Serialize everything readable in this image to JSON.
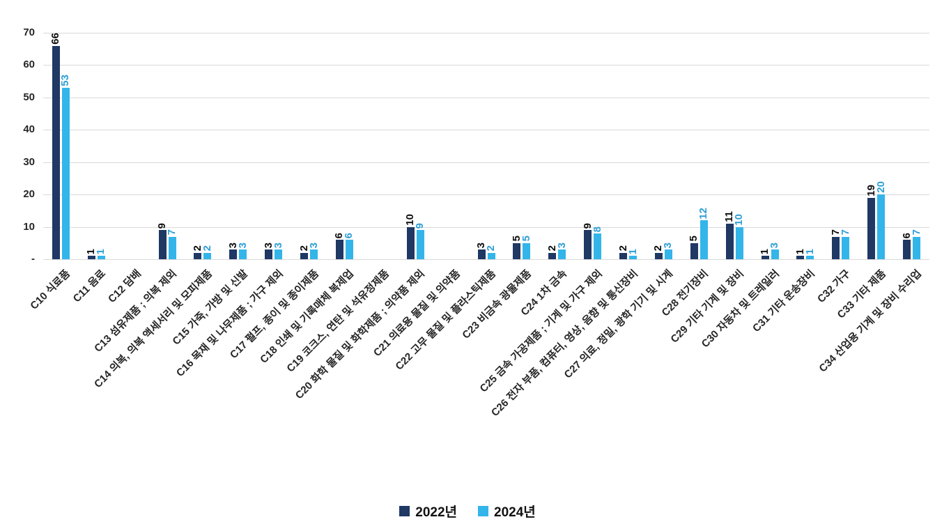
{
  "chart_data": {
    "type": "bar",
    "categories": [
      "C10 식료품",
      "C11 음료",
      "C12 담배",
      "C13 섬유제품 ; 의복 제외",
      "C14 의복, 의복 액세서리 및 모피제품",
      "C15 가죽, 가방 및 신발",
      "C16 목재 및 나무제품 ; 가구 제외",
      "C17 펄프, 종이 및 종이제품",
      "C18 인쇄 및 기록매체 복제업",
      "C19 코크스, 연탄 및 석유정제품",
      "C20 화학 물질 및 화학제품 ; 의약품 제외",
      "C21 의료용 물질 및 의약품",
      "C22 고무 물질 및 플라스틱제품",
      "C23 비금속 광물제품",
      "C24 1차 금속",
      "C25 금속 가공제품 ; 기계 및 가구 제외",
      "C26 전자 부품, 컴퓨터, 영상, 음향 및 통신장비",
      "C27 의료, 정밀, 광학 기기 및 시계",
      "C28 전기장비",
      "C29 기타 기계 및 장비",
      "C30 자동차 및 트레일러",
      "C31 기타 운송장비",
      "C32 가구",
      "C33 기타 제품",
      "C34 산업용 기계 및 장비 수리업"
    ],
    "series": [
      {
        "name": "2022년",
        "color": "#1f3864",
        "label_color": "#0d0d0d",
        "values": [
          66,
          1,
          0,
          9,
          2,
          3,
          3,
          2,
          6,
          0,
          10,
          0,
          3,
          5,
          2,
          9,
          2,
          2,
          5,
          11,
          1,
          1,
          7,
          19,
          6
        ]
      },
      {
        "name": "2024년",
        "color": "#33b5ea",
        "label_color": "#2f9ed6",
        "values": [
          53,
          1,
          0,
          7,
          2,
          3,
          3,
          3,
          6,
          0,
          9,
          0,
          2,
          5,
          3,
          8,
          1,
          3,
          12,
          10,
          3,
          1,
          7,
          20,
          7
        ]
      }
    ],
    "title": "",
    "xlabel": "",
    "ylabel": "",
    "ylim": [
      0,
      70
    ],
    "yticks": [
      0,
      10,
      20,
      30,
      40,
      50,
      60,
      70
    ],
    "ytick_labels": [
      "-",
      "10",
      "20",
      "30",
      "40",
      "50",
      "60",
      "70"
    ],
    "grid": true,
    "gridline_color": "#d9d9d9",
    "background_color": "#ffffff",
    "legend_position": "bottom"
  }
}
